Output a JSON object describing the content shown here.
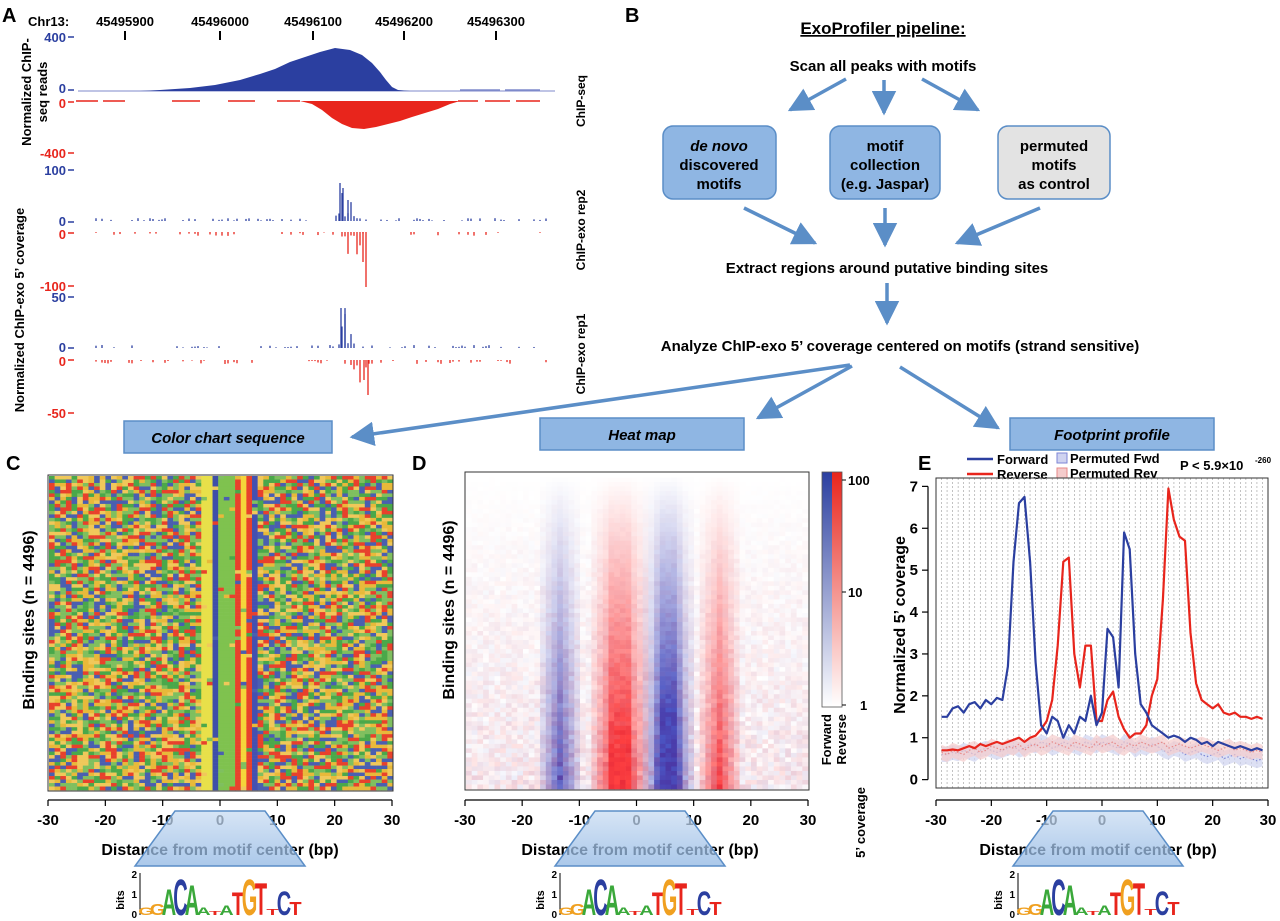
{
  "panel_a": {
    "letter": "A",
    "chrom_label": "Chr13:",
    "positions": [
      "45495900",
      "45496000",
      "45496100",
      "45496200",
      "45496300"
    ],
    "ylabel_chipseq": "Normalized ChIP-seq reads",
    "ylabel_chipseq_line1": "Normalized ChIP-",
    "ylabel_chipseq_line2": "seq reads",
    "ylabel_exo": "Normalized ChIP-exo 5’ coverage",
    "tracks": [
      {
        "name": "ChIP-seq",
        "top": "400",
        "zero_f": "0",
        "zero_r": "0",
        "bottom": "-400"
      },
      {
        "name": "ChIP-exo rep2",
        "top": "100",
        "zero_f": "0",
        "zero_r": "0",
        "bottom": "-100"
      },
      {
        "name": "ChIP-exo rep1",
        "top": "50",
        "zero_f": "0",
        "zero_r": "0",
        "bottom": "-50"
      }
    ],
    "colors": {
      "forward": "#2b3fa0",
      "reverse": "#e8251c"
    }
  },
  "panel_b": {
    "letter": "B",
    "title": "ExoProfiler pipeline:",
    "step1": "Scan all peaks with motifs",
    "box1_line1": "de novo",
    "box1_line2": "discovered",
    "box1_line3": "motifs",
    "box2_line1": "motif",
    "box2_line2": "collection",
    "box2_line3": "(e.g. Jaspar)",
    "box3_line1": "permuted",
    "box3_line2": "motifs",
    "box3_line3": "as control",
    "step2": "Extract regions around putative binding sites",
    "step3": "Analyze ChIP-exo 5’ coverage centered on motifs (strand sensitive)",
    "out1": "Color chart sequence",
    "out2": "Heat map",
    "out3": "Footprint profile"
  },
  "panel_c": {
    "letter": "C",
    "ylabel": "Binding sites (n = 4496)",
    "xlabel": "Distance from motif center (bp)",
    "xticks": [
      "-30",
      "-20",
      "-10",
      "0",
      "10",
      "20",
      "30"
    ]
  },
  "panel_d": {
    "letter": "D",
    "ylabel": "Binding sites (n = 4496)",
    "xlabel": "Distance from motif center (bp)",
    "xticks": [
      "-30",
      "-20",
      "-10",
      "0",
      "10",
      "20",
      "30"
    ],
    "scale_ticks": [
      "100",
      "10",
      "1"
    ],
    "scale_labels": [
      "Forward",
      "Reverse",
      "5’ coverage"
    ]
  },
  "panel_e": {
    "letter": "E",
    "legend": [
      "Forward",
      "Reverse",
      "Permuted Fwd",
      "Permuted Rev"
    ],
    "pvalue": "P < 5.9×10",
    "pvalue_exp": "-260",
    "ylabel": "Normalized 5’ coverage",
    "xlabel": "Distance from motif center (bp)",
    "xticks": [
      "-30",
      "-20",
      "-10",
      "0",
      "10",
      "20",
      "30"
    ],
    "yticks": [
      "0",
      "1",
      "2",
      "3",
      "4",
      "5",
      "6",
      "7"
    ]
  },
  "logo": {
    "ylabel": "bits",
    "yticks": [
      "2",
      "1",
      "0"
    ],
    "letters": "GACA TGTC"
  },
  "chart_data": {
    "type": "line",
    "x": [
      -29,
      -28,
      -27,
      -26,
      -25,
      -24,
      -23,
      -22,
      -21,
      -20,
      -19,
      -18,
      -17,
      -16,
      -15,
      -14,
      -13,
      -12,
      -11,
      -10,
      -9,
      -8,
      -7,
      -6,
      -5,
      -4,
      -3,
      -2,
      -1,
      0,
      1,
      2,
      3,
      4,
      5,
      6,
      7,
      8,
      9,
      10,
      11,
      12,
      13,
      14,
      15,
      16,
      17,
      18,
      19,
      20,
      21,
      22,
      23,
      24,
      25,
      26,
      27,
      28,
      29
    ],
    "series": [
      {
        "name": "Forward",
        "values": [
          1.5,
          1.5,
          1.7,
          1.75,
          1.6,
          1.8,
          1.85,
          1.7,
          1.9,
          1.8,
          1.95,
          1.9,
          2.7,
          5.2,
          6.6,
          6.75,
          5.2,
          2.8,
          1.3,
          1.1,
          1.5,
          1.4,
          1.0,
          1.3,
          1.1,
          1.5,
          1.4,
          2.0,
          1.3,
          1.6,
          3.6,
          3.4,
          2.2,
          5.9,
          5.5,
          3.0,
          1.8,
          1.6,
          1.3,
          1.2,
          1.1,
          1.0,
          1.05,
          1.0,
          0.9,
          1.0,
          0.95,
          0.85,
          0.9,
          0.8,
          0.9,
          0.85,
          0.8,
          0.75,
          0.8,
          0.75,
          0.7,
          0.75,
          0.7
        ]
      },
      {
        "name": "Reverse",
        "values": [
          0.7,
          0.7,
          0.72,
          0.7,
          0.75,
          0.8,
          0.75,
          0.85,
          0.8,
          0.85,
          0.9,
          0.85,
          0.9,
          0.95,
          1.0,
          0.9,
          1.0,
          1.05,
          1.2,
          1.4,
          1.9,
          3.2,
          5.2,
          5.3,
          3.0,
          2.2,
          3.2,
          3.2,
          1.4,
          1.4,
          1.9,
          2.1,
          1.5,
          1.2,
          1.0,
          1.1,
          1.1,
          1.3,
          2.0,
          2.4,
          4.3,
          6.95,
          6.2,
          5.8,
          5.7,
          3.5,
          2.3,
          1.9,
          1.8,
          1.7,
          1.8,
          1.6,
          1.55,
          1.6,
          1.5,
          1.5,
          1.45,
          1.5,
          1.45
        ]
      },
      {
        "name": "Permuted Fwd",
        "values": [
          0.6,
          0.6,
          0.65,
          0.62,
          0.7,
          0.65,
          0.6,
          0.7,
          0.75,
          0.7,
          0.65,
          0.7,
          0.75,
          0.8,
          0.7,
          0.75,
          0.85,
          0.8,
          0.9,
          0.85,
          0.75,
          0.8,
          0.9,
          0.85,
          0.8,
          0.75,
          0.9,
          0.85,
          0.8,
          0.9,
          0.85,
          0.8,
          0.75,
          0.9,
          0.85,
          0.7,
          0.8,
          0.75,
          0.85,
          0.8,
          0.7,
          0.65,
          0.75,
          0.7,
          0.6,
          0.65,
          0.7,
          0.6,
          0.55,
          0.6,
          0.65,
          0.5,
          0.55,
          0.6,
          0.5,
          0.55,
          0.5,
          0.45,
          0.5
        ]
      },
      {
        "name": "Permuted Rev",
        "values": [
          0.65,
          0.6,
          0.7,
          0.65,
          0.6,
          0.7,
          0.75,
          0.65,
          0.7,
          0.8,
          0.75,
          0.7,
          0.8,
          0.75,
          0.85,
          0.7,
          0.8,
          0.85,
          0.75,
          0.8,
          0.9,
          0.85,
          0.8,
          0.75,
          0.9,
          0.85,
          0.8,
          0.75,
          0.9,
          0.8,
          0.85,
          0.9,
          0.8,
          0.75,
          0.85,
          0.8,
          0.9,
          0.85,
          0.8,
          0.85,
          0.9,
          0.75,
          0.8,
          0.85,
          0.8,
          0.75,
          0.8,
          0.85,
          0.8,
          0.75,
          0.7,
          0.75,
          0.8,
          0.7,
          0.75,
          0.7,
          0.65,
          0.7,
          0.65
        ]
      }
    ],
    "xlabel": "Distance from motif center (bp)",
    "ylabel": "Normalized 5’ coverage",
    "xlim": [
      -30,
      30
    ],
    "ylim": [
      -0.2,
      7.2
    ],
    "grid": true,
    "legend_position": "top",
    "colors": {
      "Forward": "#2b3fa0",
      "Reverse": "#e8251c",
      "Permuted Fwd": "#7c86d6",
      "Permuted Rev": "#e78a8a"
    }
  }
}
